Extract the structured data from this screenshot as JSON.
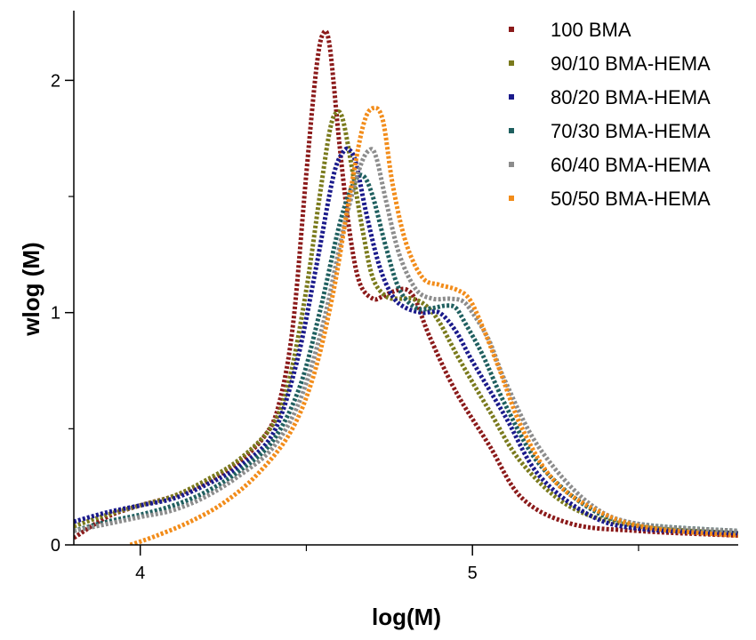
{
  "chart_data": {
    "type": "line",
    "xlabel": "log(M)",
    "ylabel": "wlog (M)",
    "xlim": [
      3.8,
      5.8
    ],
    "ylim": [
      0,
      2.3
    ],
    "x_major_ticks": [
      4,
      5
    ],
    "x_tick_labels": [
      "4",
      "5"
    ],
    "y_major_ticks": [
      0,
      1,
      2
    ],
    "y_tick_labels": [
      "0",
      "1",
      "2"
    ],
    "line_style": "dotted",
    "legend_position": "top-right",
    "series": [
      {
        "name": "100 BMA",
        "color": "#8b1a1a",
        "x": [
          3.8,
          3.9,
          4.0,
          4.1,
          4.2,
          4.3,
          4.38,
          4.42,
          4.46,
          4.5,
          4.53,
          4.55,
          4.57,
          4.6,
          4.63,
          4.66,
          4.7,
          4.73,
          4.76,
          4.8,
          4.83,
          4.87,
          4.95,
          5.05,
          5.15,
          5.3,
          5.5,
          5.8
        ],
        "y": [
          0.03,
          0.12,
          0.17,
          0.21,
          0.27,
          0.36,
          0.48,
          0.62,
          0.95,
          1.6,
          2.05,
          2.2,
          2.15,
          1.72,
          1.35,
          1.13,
          1.06,
          1.07,
          1.09,
          1.1,
          1.05,
          0.9,
          0.66,
          0.43,
          0.2,
          0.09,
          0.06,
          0.04
        ]
      },
      {
        "name": "90/10 BMA-HEMA",
        "color": "#7a7a1c",
        "x": [
          3.8,
          3.9,
          4.0,
          4.1,
          4.2,
          4.3,
          4.4,
          4.45,
          4.5,
          4.54,
          4.57,
          4.59,
          4.61,
          4.64,
          4.67,
          4.7,
          4.74,
          4.78,
          4.82,
          4.86,
          4.9,
          4.96,
          5.05,
          5.15,
          5.3,
          5.5,
          5.8
        ],
        "y": [
          0.08,
          0.13,
          0.17,
          0.21,
          0.28,
          0.37,
          0.52,
          0.72,
          1.1,
          1.5,
          1.78,
          1.86,
          1.83,
          1.6,
          1.35,
          1.15,
          1.07,
          1.06,
          1.06,
          1.03,
          0.96,
          0.8,
          0.58,
          0.35,
          0.16,
          0.08,
          0.05
        ]
      },
      {
        "name": "80/20 BMA-HEMA",
        "color": "#1a1a8b",
        "x": [
          3.8,
          3.9,
          4.0,
          4.1,
          4.2,
          4.3,
          4.4,
          4.47,
          4.53,
          4.58,
          4.61,
          4.63,
          4.65,
          4.68,
          4.72,
          4.76,
          4.8,
          4.85,
          4.9,
          4.95,
          5.0,
          5.1,
          5.2,
          5.35,
          5.5,
          5.8
        ],
        "y": [
          0.1,
          0.14,
          0.17,
          0.2,
          0.26,
          0.34,
          0.48,
          0.78,
          1.2,
          1.58,
          1.69,
          1.7,
          1.64,
          1.43,
          1.2,
          1.07,
          1.02,
          1.0,
          1.0,
          0.92,
          0.79,
          0.55,
          0.3,
          0.13,
          0.07,
          0.05
        ]
      },
      {
        "name": "70/30 BMA-HEMA",
        "color": "#1f5f5f",
        "x": [
          3.8,
          3.9,
          4.0,
          4.1,
          4.2,
          4.3,
          4.4,
          4.48,
          4.54,
          4.6,
          4.64,
          4.67,
          4.7,
          4.74,
          4.78,
          4.83,
          4.88,
          4.92,
          4.95,
          4.98,
          5.03,
          5.1,
          5.2,
          5.35,
          5.5,
          5.8
        ],
        "y": [
          0.06,
          0.1,
          0.13,
          0.17,
          0.23,
          0.32,
          0.45,
          0.68,
          1.0,
          1.38,
          1.55,
          1.59,
          1.5,
          1.28,
          1.1,
          1.02,
          1.02,
          1.03,
          1.02,
          0.95,
          0.82,
          0.6,
          0.35,
          0.16,
          0.09,
          0.06
        ]
      },
      {
        "name": "60/40 BMA-HEMA",
        "color": "#8c8c8c",
        "x": [
          3.8,
          3.9,
          4.0,
          4.1,
          4.2,
          4.3,
          4.4,
          4.48,
          4.55,
          4.61,
          4.66,
          4.69,
          4.71,
          4.74,
          4.78,
          4.83,
          4.88,
          4.93,
          4.97,
          5.0,
          5.05,
          5.1,
          5.2,
          5.35,
          5.5,
          5.8
        ],
        "y": [
          0.06,
          0.09,
          0.12,
          0.15,
          0.21,
          0.3,
          0.42,
          0.62,
          0.95,
          1.35,
          1.62,
          1.7,
          1.67,
          1.48,
          1.25,
          1.1,
          1.06,
          1.06,
          1.05,
          1.0,
          0.88,
          0.7,
          0.42,
          0.18,
          0.09,
          0.06
        ]
      },
      {
        "name": "50/50 BMA-HEMA",
        "color": "#f28c1a",
        "x": [
          3.97,
          4.05,
          4.15,
          4.25,
          4.35,
          4.45,
          4.52,
          4.58,
          4.63,
          4.67,
          4.7,
          4.73,
          4.76,
          4.8,
          4.85,
          4.9,
          4.95,
          4.99,
          5.03,
          5.08,
          5.15,
          5.25,
          5.4,
          5.55,
          5.8
        ],
        "y": [
          0.0,
          0.04,
          0.1,
          0.18,
          0.3,
          0.48,
          0.72,
          1.08,
          1.5,
          1.8,
          1.88,
          1.83,
          1.55,
          1.3,
          1.15,
          1.12,
          1.1,
          1.06,
          0.94,
          0.76,
          0.5,
          0.27,
          0.13,
          0.07,
          0.04
        ]
      }
    ]
  }
}
